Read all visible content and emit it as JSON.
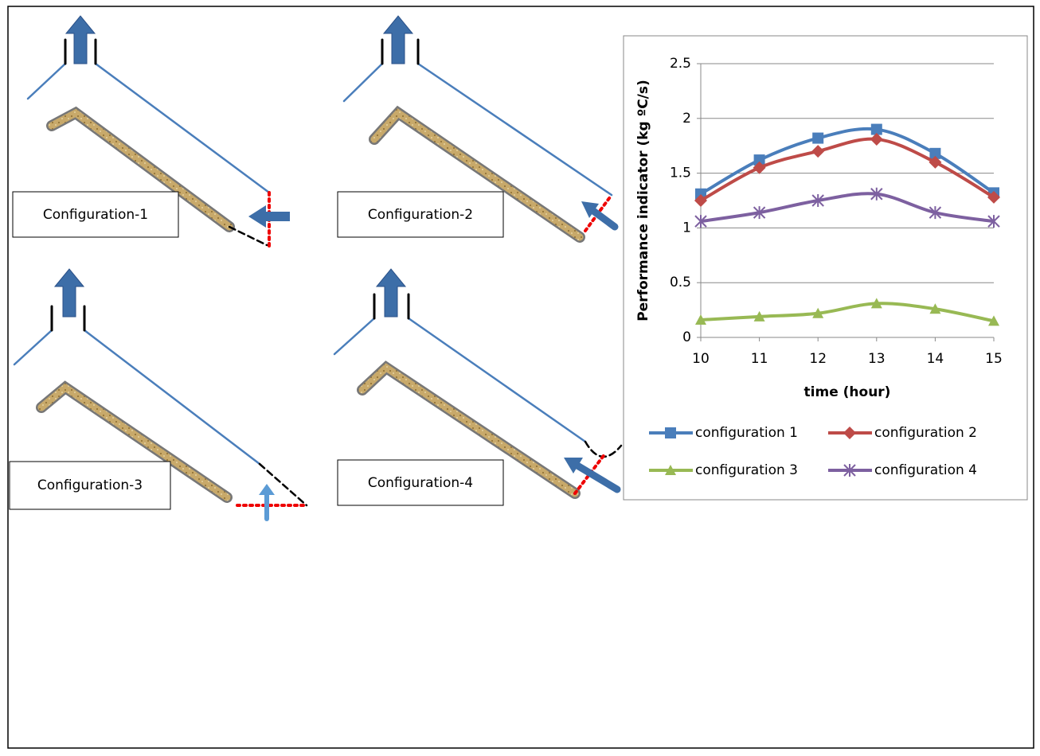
{
  "diagram": {
    "labels": [
      "Configuration-1",
      "Configuration-2",
      "Configuration-3",
      "Configuration-4"
    ]
  },
  "chart_data": {
    "type": "line",
    "ylabel": "Performance indicator (kg ºC/s)",
    "xlabel": "time (hour)",
    "x": [
      10,
      11,
      12,
      13,
      14,
      15
    ],
    "xlim": [
      10,
      15
    ],
    "xticks": [
      10,
      11,
      12,
      13,
      14,
      15
    ],
    "ylim": [
      0,
      2.5
    ],
    "yticks": [
      0,
      0.5,
      1,
      1.5,
      2,
      2.5
    ],
    "grid": true,
    "smooth": true,
    "legend": "bottom",
    "series": [
      {
        "name": "configuration 1",
        "color": "#4a7ebb",
        "marker": "square",
        "values": [
          1.31,
          1.62,
          1.82,
          1.9,
          1.68,
          1.32
        ]
      },
      {
        "name": "configuration 2",
        "color": "#be4b48",
        "marker": "diamond",
        "values": [
          1.25,
          1.55,
          1.7,
          1.81,
          1.6,
          1.28
        ]
      },
      {
        "name": "configuration 3",
        "color": "#98b954",
        "marker": "triangle",
        "values": [
          0.16,
          0.19,
          0.22,
          0.31,
          0.26,
          0.15
        ]
      },
      {
        "name": "configuration 4",
        "color": "#7d60a0",
        "marker": "star",
        "values": [
          1.06,
          1.14,
          1.25,
          1.31,
          1.14,
          1.06
        ]
      }
    ]
  }
}
